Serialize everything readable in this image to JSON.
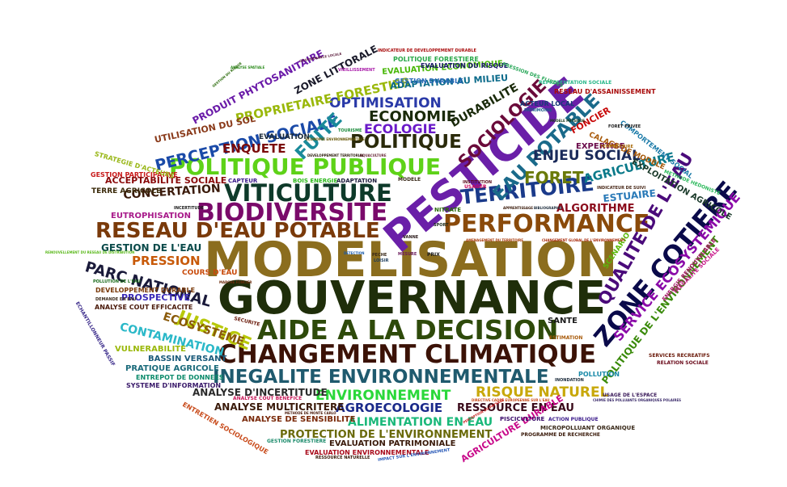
{
  "words": [
    {
      "text": "MODELISATION",
      "color": "#8b6d1e"
    },
    {
      "text": "GOUVERNANCE",
      "color": "#1f2e0a"
    },
    {
      "text": "PESTICIDE",
      "color": "#6a1fa8"
    },
    {
      "text": "CHANGEMENT CLIMATIQUE",
      "color": "#3b1206"
    },
    {
      "text": "AIDE A LA DECISION",
      "color": "#2e4a0a"
    },
    {
      "text": "INEGALITE ENVIRONNEMENTALE",
      "color": "#1f5a6e"
    },
    {
      "text": "BIODIVERSITE",
      "color": "#7a0a6a"
    },
    {
      "text": "VITICULTURE",
      "color": "#0e3a2a"
    },
    {
      "text": "POLITIQUE PUBLIQUE",
      "color": "#5ed218"
    },
    {
      "text": "RESEAU D'EAU POTABLE",
      "color": "#7a3a0a"
    },
    {
      "text": "PERFORMANCE",
      "color": "#8a4a0a"
    },
    {
      "text": "TERRITOIRE",
      "color": "#1a3a8a"
    },
    {
      "text": "ZONE COTIERE",
      "color": "#0a0a4a"
    },
    {
      "text": "QUALITE DE L'EAU",
      "color": "#4a0a7a"
    },
    {
      "text": "EAU POTABLE",
      "color": "#1a6a8a"
    },
    {
      "text": "SOCIOLOGIE",
      "color": "#6a0a3a"
    },
    {
      "text": "POLITIQUE",
      "color": "#2a2a0a"
    },
    {
      "text": "PERCEPTION SOCIALE",
      "color": "#1a4aa8"
    },
    {
      "text": "SERVICE ECOSYSTEMIQUE",
      "color": "#8a0aa8"
    },
    {
      "text": "FORET",
      "color": "#6a7a0a"
    },
    {
      "text": "JUSTICE",
      "color": "#b8c80a"
    },
    {
      "text": "ENVIRONNEMENT",
      "color": "#2ad83a"
    },
    {
      "text": "RISQUE NATUREL",
      "color": "#c8a80a"
    },
    {
      "text": "ECONOMIE",
      "color": "#1a2a0a"
    },
    {
      "text": "ECOLOGIE",
      "color": "#6a1ac8"
    },
    {
      "text": "OPTIMISATION",
      "color": "#2a3aa8"
    },
    {
      "text": "PARC NATIONAL",
      "color": "#1a1a3a"
    },
    {
      "text": "ENJEU SOCIAL",
      "color": "#1a2a5a"
    },
    {
      "text": "AGRICULTURE",
      "color": "#0a7a8a"
    },
    {
      "text": "FUITE",
      "color": "#1a8a9a"
    },
    {
      "text": "ENQUETE",
      "color": "#7a0a0a"
    },
    {
      "text": "PROPRIETAIRE FORESTIER",
      "color": "#9ab80a"
    },
    {
      "text": "DURABILITE",
      "color": "#1a2a0a"
    },
    {
      "text": "AGROECOLOGIE",
      "color": "#1a2a8a"
    },
    {
      "text": "ALIMENTATION EN EAU",
      "color": "#1ab87a"
    },
    {
      "text": "PROTECTION DE L'ENVIRONNEMENT",
      "color": "#6a6a0a"
    },
    {
      "text": "RESSOURCE EN EAU",
      "color": "#3a0a1a"
    },
    {
      "text": "ECOSYSTEME",
      "color": "#8a5a0a"
    },
    {
      "text": "CONTAMINATION",
      "color": "#2ab8c8"
    },
    {
      "text": "PRESSION",
      "color": "#c85a0a"
    },
    {
      "text": "CONCERTATION",
      "color": "#3a1a0a"
    },
    {
      "text": "ALGORITHME",
      "color": "#8a0a1a"
    },
    {
      "text": "ESTUAIRE",
      "color": "#2a7ab8"
    },
    {
      "text": "POLITIQUE DE L'ENVIRONNEMENT",
      "color": "#3a8a0a"
    },
    {
      "text": "AGRICULTURE DURABLE",
      "color": "#c80a8a"
    },
    {
      "text": "ANALYSE D'INCERTITUDE",
      "color": "#2a2a2a"
    },
    {
      "text": "ANALYSE MULTICRITERE",
      "color": "#3a1a0a"
    },
    {
      "text": "ACCEPTABILITE SOCIALE",
      "color": "#8a0a0a"
    },
    {
      "text": "GESTION DE L'EAU",
      "color": "#0a4a4a"
    },
    {
      "text": "PRODUIT PHYTOSANITAIRE",
      "color": "#6a1aa8"
    },
    {
      "text": "UTILISATION DU SOL",
      "color": "#8a3a1a"
    },
    {
      "text": "ZONE LITTORALE",
      "color": "#1a1a2a"
    },
    {
      "text": "EXPLOITATION AGRICOLE",
      "color": "#1a3a2a"
    },
    {
      "text": "FONCIER",
      "color": "#c80a0a"
    },
    {
      "text": "EXPERTISE",
      "color": "#6a0a4a"
    },
    {
      "text": "EUTROPHISATION",
      "color": "#a81a8a"
    },
    {
      "text": "PROSPECTIVE",
      "color": "#3a2ab8"
    },
    {
      "text": "VULNERABILITE",
      "color": "#9ab80a"
    },
    {
      "text": "BASSIN VERSANT",
      "color": "#1a5a7a"
    },
    {
      "text": "PRATIQUE AGRICOLE",
      "color": "#1a6a7a"
    },
    {
      "text": "EVALUATION PATRIMONIALE",
      "color": "#3a1a0a"
    },
    {
      "text": "ANALYSE DE SENSIBILITE",
      "color": "#7a2a0a"
    },
    {
      "text": "EVALUATION ECONOMIQUE",
      "color": "#4ab80a"
    },
    {
      "text": "ADAPTATION AU MILIEU",
      "color": "#0a6a8a"
    },
    {
      "text": "RESEAU D'ASSAINISSEMENT",
      "color": "#a80a0a"
    },
    {
      "text": "COURS D'EAU",
      "color": "#c84a0a"
    },
    {
      "text": "CALAGE DE MODELE",
      "color": "#a85a0a"
    },
    {
      "text": "SCENARIO",
      "color": "#5ab80a"
    },
    {
      "text": "SANTE",
      "color": "#1a1a1a"
    },
    {
      "text": "EVALUATION",
      "color": "#1a2a3a"
    },
    {
      "text": "TERRE AGRICOLE",
      "color": "#3a2a0a"
    },
    {
      "text": "GESTION PARTICIPATIVE",
      "color": "#c81a1a"
    },
    {
      "text": "ENTREPOT DE DONNEES",
      "color": "#0a8a6a"
    },
    {
      "text": "SYSTEME D'INFORMATION",
      "color": "#3a1a6a"
    },
    {
      "text": "ANALYSE COUT EFFICACITE",
      "color": "#4a1a0a"
    },
    {
      "text": "DEVELOPPEMENT DURABLE",
      "color": "#7a3a0a"
    },
    {
      "text": "POLLUTION",
      "color": "#1a8aa8"
    },
    {
      "text": "ACTEUR LOCAL",
      "color": "#1a3a7a"
    },
    {
      "text": "POLITIQUE FORESTIERE",
      "color": "#2aa84a"
    },
    {
      "text": "EVALUATION DU RISQUE",
      "color": "#1a1a6a"
    },
    {
      "text": "GESTION DURABLE",
      "color": "#2a6ab8"
    },
    {
      "text": "COMPORTEMENT SOCIAL",
      "color": "#1a7aa8"
    },
    {
      "text": "EVALUATION ENVIRONNEMENTALE",
      "color": "#a80a1a"
    },
    {
      "text": "STRATEGIE D'ACTEURS",
      "color": "#9ab81a"
    },
    {
      "text": "ENTRETIEN SOCIOLOGIQUE",
      "color": "#c84a1a"
    },
    {
      "text": "PROGRAMME DE RECHERCHE",
      "color": "#3a1a0a"
    },
    {
      "text": "MICROPOLLUANT ORGANIQUE",
      "color": "#3a2a1a"
    },
    {
      "text": "ACTION PUBLIQUE",
      "color": "#3a1a8a"
    },
    {
      "text": "PISCICULTURE",
      "color": "#3a0a6a"
    },
    {
      "text": "METHODE HEDONISTE",
      "color": "#2ab85a"
    },
    {
      "text": "ENERGIE RENOUVELABLE",
      "color": "#a81a6a"
    },
    {
      "text": "INEGALITE SOCIALE",
      "color": "#c81a8a"
    },
    {
      "text": "SERVICES RECREATIFS",
      "color": "#6a1a0a"
    },
    {
      "text": "RELATION SOCIALE",
      "color": "#6a0a1a"
    },
    {
      "text": "USAGE DE L'ESPACE",
      "color": "#3a1a5a"
    },
    {
      "text": "REPRESENTATION SOCIALE",
      "color": "#2ab88a"
    },
    {
      "text": "INDICATEUR DE DEVELOPPEMENT DURABLE",
      "color": "#a80a0a"
    },
    {
      "text": "PRESSION DES FLUIDES",
      "color": "#2aa85a"
    },
    {
      "text": "ECHANTILLONNEUR PASSIF",
      "color": "#3a2a8a"
    },
    {
      "text": "ANALYSE COUT BENEFICE",
      "color": "#c81a5a"
    },
    {
      "text": "GESTION FORESTIERE",
      "color": "#1a8a6a"
    },
    {
      "text": "IMPACT SUR L'ENVIRONNEMENT",
      "color": "#2a5ab8"
    },
    {
      "text": "RESSOURCE NATURELLE",
      "color": "#3a1a0a"
    },
    {
      "text": "TOURISME",
      "color": "#1a8a3a"
    },
    {
      "text": "TEMPERATURE",
      "color": "#a86a0a"
    },
    {
      "text": "POLLUTION DE L'EAU",
      "color": "#1a6a1a"
    },
    {
      "text": "DEMANDE EN EAU",
      "color": "#3a2a1a"
    },
    {
      "text": "VIEILLISSEMENT",
      "color": "#a81aa8"
    },
    {
      "text": "ANALYSE SPATIALE",
      "color": "#2a8a1a"
    },
    {
      "text": "ECONOMIE ENVIRONNEMENTALE",
      "color": "#6a5a0a"
    },
    {
      "text": "DEVELOPPEMENT TERRITORIAL",
      "color": "#2a1a0a"
    },
    {
      "text": "AQUACULTURE",
      "color": "#6a2a3a"
    },
    {
      "text": "BOIS ENERGIE",
      "color": "#2ab81a"
    },
    {
      "text": "CAPTEUR",
      "color": "#3a1a8a"
    },
    {
      "text": "ADAPTATION",
      "color": "#1a1a3a"
    },
    {
      "text": "MODELE",
      "color": "#3a2a1a"
    },
    {
      "text": "NITRATE",
      "color": "#2a6a0a"
    },
    {
      "text": "USAGER",
      "color": "#c80a5a"
    },
    {
      "text": "INCERTITUDE",
      "color": "#1a1a1a"
    },
    {
      "text": "SECURITE",
      "color": "#6a1a0a"
    },
    {
      "text": "ESTIMATION",
      "color": "#a85a0a"
    },
    {
      "text": "INONDATION",
      "color": "#1a2a3a"
    },
    {
      "text": "INSTITUTION",
      "color": "#5a0a1a"
    },
    {
      "text": "PATRIMOINE",
      "color": "#1a5a8a"
    },
    {
      "text": "INDICATEUR DE SUIVI",
      "color": "#4a2a1a"
    },
    {
      "text": "FORET PRIVEE",
      "color": "#1a1a1a"
    },
    {
      "text": "MARCHE FONCIER",
      "color": "#6a2a0a"
    },
    {
      "text": "AMENAGEMENT DU TERRITOIRE",
      "color": "#a83a0a"
    },
    {
      "text": "CHANGEMENT GLOBAL DE L'ENVIRONNEMENT",
      "color": "#a82a0a"
    },
    {
      "text": "RENOUVELLEMENT DU RESEAU DE DISTRIBUTION",
      "color": "#5ab81a"
    },
    {
      "text": "PRIX",
      "color": "#1a1a1a"
    },
    {
      "text": "PECHE",
      "color": "#3a2a1a"
    },
    {
      "text": "LOISIR",
      "color": "#1a3a5a"
    },
    {
      "text": "VANNE",
      "color": "#2a1a1a"
    },
    {
      "text": "SPORT",
      "color": "#1a2a1a"
    },
    {
      "text": "MESURE",
      "color": "#6a1a5a"
    },
    {
      "text": "DETECTION",
      "color": "#1a5aa8"
    },
    {
      "text": "DIRECTIVE CADRE EUROPEENNE SUR L'EAU",
      "color": "#c84a1a"
    },
    {
      "text": "CHIMIE DES POLLUANTS ORGANIQUES POLAIRES",
      "color": "#3a2a6a"
    },
    {
      "text": "APPRENTISSAGE",
      "color": "#3a1a0a"
    },
    {
      "text": "BIBLIOGRAPHIE",
      "color": "#1a2a3a"
    },
    {
      "text": "METHODE DE MONTE CARLO",
      "color": "#4a1a0a"
    },
    {
      "text": "PERCEPTION DU PAYSAGE",
      "color": "#c81a1a"
    },
    {
      "text": "GESTION DU RISQUE",
      "color": "#2a6a0a"
    },
    {
      "text": "MODELE PHYSIQUE",
      "color": "#1a3a1a"
    },
    {
      "text": "GOUVERNANCE LOCALE",
      "color": "#5a1a3a"
    }
  ]
}
